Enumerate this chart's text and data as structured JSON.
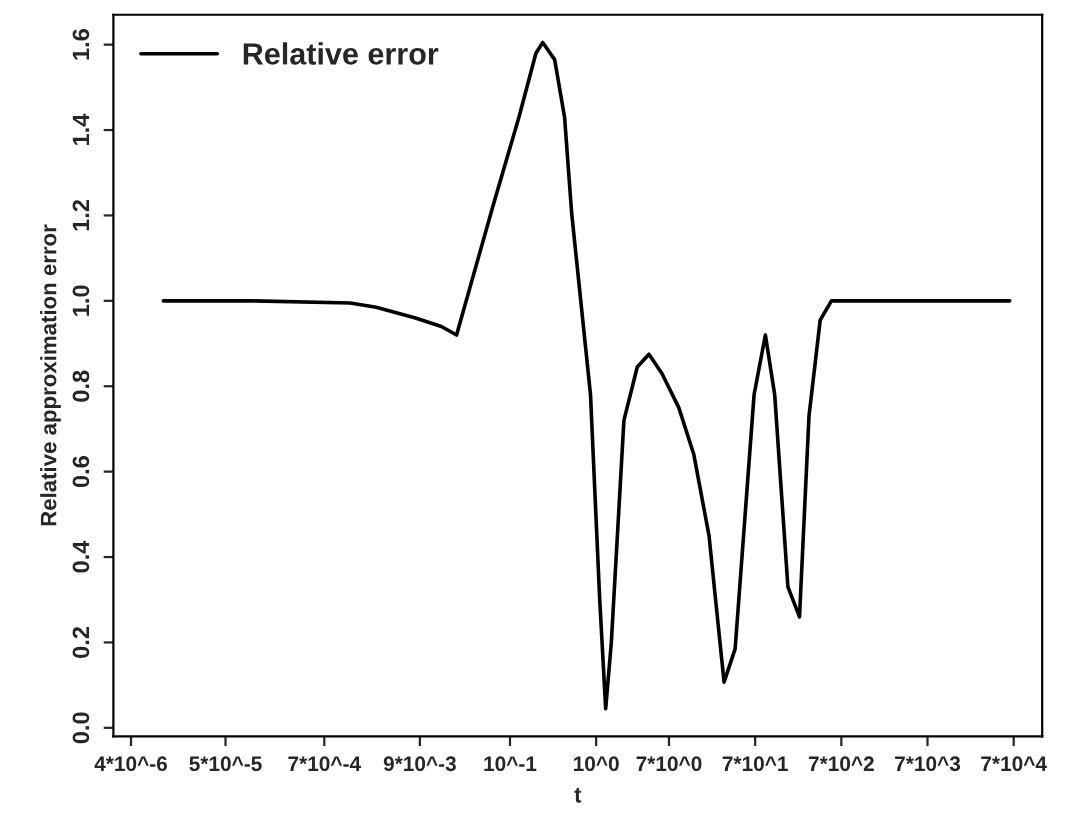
{
  "chart_data": {
    "type": "line",
    "xlabel": "t",
    "ylabel": "Relative approximation error",
    "log": "x",
    "legend": "top left",
    "grid": false,
    "xlim": [
      2.5e-06,
      150000.0
    ],
    "ylim": [
      -0.02,
      1.67
    ],
    "xticks": [
      {
        "value": 4e-06,
        "label": "4*10^-6"
      },
      {
        "value": 5e-05,
        "label": "5*10^-5"
      },
      {
        "value": 0.0007,
        "label": "7*10^-4"
      },
      {
        "value": 0.009,
        "label": "9*10^-3"
      },
      {
        "value": 0.1,
        "label": "10^-1"
      },
      {
        "value": 1,
        "label": "10^0"
      },
      {
        "value": 7,
        "label": "7*10^0"
      },
      {
        "value": 70,
        "label": "7*10^1"
      },
      {
        "value": 700,
        "label": "7*10^2"
      },
      {
        "value": 7000,
        "label": "7*10^3"
      },
      {
        "value": 70000,
        "label": "7*10^4"
      }
    ],
    "yticks": [
      {
        "value": 0,
        "label": "0.0"
      },
      {
        "value": 0.2,
        "label": "0.2"
      },
      {
        "value": 0.4,
        "label": "0.4"
      },
      {
        "value": 0.6,
        "label": "0.6"
      },
      {
        "value": 0.8,
        "label": "0.8"
      },
      {
        "value": 1.0,
        "label": "1.0"
      },
      {
        "value": 1.2,
        "label": "1.2"
      },
      {
        "value": 1.4,
        "label": "1.4"
      },
      {
        "value": 1.6,
        "label": "1.6"
      }
    ],
    "series": [
      {
        "name": "Relative error",
        "color": "#000000",
        "x": [
          9.5e-06,
          0.0001,
          0.0014,
          0.0028,
          0.008,
          0.016,
          0.024,
          0.063,
          0.127,
          0.2,
          0.24,
          0.33,
          0.43,
          0.52,
          0.86,
          1.1,
          1.29,
          1.5,
          2.1,
          3.0,
          4.1,
          5.8,
          9.1,
          13.6,
          20.4,
          30.5,
          41,
          68,
          92,
          118,
          168,
          229,
          295,
          398,
          537,
          63000
        ],
        "values": [
          1.0,
          1.0,
          0.995,
          0.985,
          0.96,
          0.94,
          0.92,
          1.22,
          1.43,
          1.58,
          1.605,
          1.565,
          1.43,
          1.205,
          0.78,
          0.3,
          0.045,
          0.2,
          0.72,
          0.845,
          0.875,
          0.83,
          0.75,
          0.64,
          0.45,
          0.107,
          0.185,
          0.78,
          0.92,
          0.78,
          0.33,
          0.26,
          0.73,
          0.955,
          1.0,
          1.0
        ]
      }
    ]
  }
}
